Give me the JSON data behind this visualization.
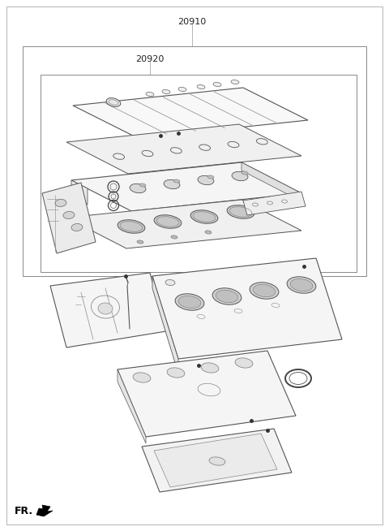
{
  "title": "20910",
  "subtitle": "20920",
  "bg_color": "#ffffff",
  "border_color": "#888888",
  "text_color": "#222222",
  "fig_width": 4.8,
  "fig_height": 6.54,
  "dpi": 100,
  "line_color": "#555555",
  "dark_line": "#333333"
}
